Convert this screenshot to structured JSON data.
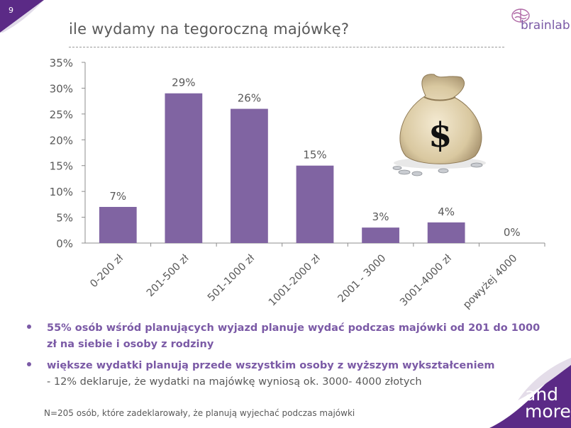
{
  "slide": {
    "page_number": "9",
    "title": "ile wydamy na tegoroczną majówkę?",
    "brand": "brainlab",
    "corner_brand_line1": "and",
    "corner_brand_line2": "more"
  },
  "chart_data": {
    "type": "bar",
    "title": "",
    "xlabel": "",
    "ylabel": "",
    "categories": [
      "0-200 zł",
      "201-500 zł",
      "501-1000 zł",
      "1001-2000 zł",
      "2001 - 3000",
      "3001-4000 zł",
      "powyżej 4000"
    ],
    "values": [
      7,
      29,
      26,
      15,
      3,
      4,
      0
    ],
    "value_labels": [
      "7%",
      "29%",
      "26%",
      "15%",
      "3%",
      "4%",
      "0%"
    ],
    "yticks": [
      0,
      5,
      10,
      15,
      20,
      25,
      30,
      35
    ],
    "ytick_labels": [
      "0%",
      "5%",
      "10%",
      "15%",
      "20%",
      "25%",
      "30%",
      "35%"
    ],
    "ylim": [
      0,
      35
    ],
    "grid": false,
    "legend": "none",
    "bar_color": "#8064A2"
  },
  "bullets": [
    {
      "main": "55% osób wśród planujących wyjazd planuje wydać podczas majówki od 201 do 1000 zł na siebie i osoby z rodziny",
      "sub": ""
    },
    {
      "main": "większe wydatki planują przede wszystkim osoby z wyższym wykształceniem",
      "sub": "- 12% deklaruje, że wydatki na majówkę wyniosą ok. 3000- 4000 złotych"
    }
  ],
  "footnote": "N=205 osób, które zadeklarowały, że planują wyjechać podczas majówki",
  "colors": {
    "accent": "#7B5AA6",
    "text": "#595959",
    "bar": "#8064A2"
  }
}
